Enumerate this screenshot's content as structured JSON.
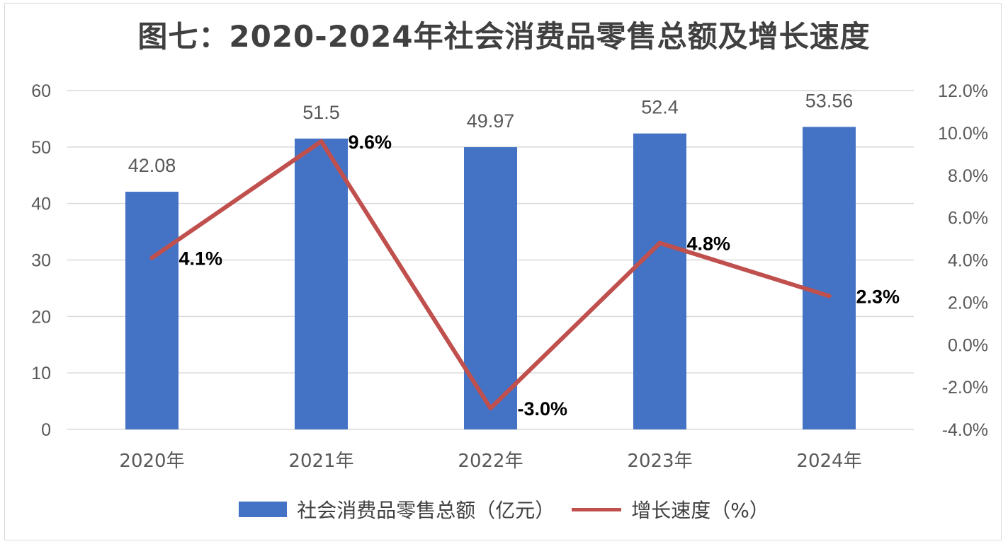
{
  "chart_data": {
    "type": "bar+line",
    "title": "图七：2020-2024年社会消费品零售总额及增长速度",
    "categories": [
      "2020年",
      "2021年",
      "2022年",
      "2023年",
      "2024年"
    ],
    "series": [
      {
        "name": "社会消费品零售总额（亿元）",
        "type": "bar",
        "axis": "left",
        "values": [
          42.08,
          51.5,
          49.97,
          52.4,
          53.56
        ],
        "labels": [
          "42.08",
          "51.5",
          "49.97",
          "52.4",
          "53.56"
        ]
      },
      {
        "name": "增长速度（%）",
        "type": "line",
        "axis": "right",
        "values": [
          4.1,
          9.6,
          -3.0,
          4.8,
          2.3
        ],
        "labels": [
          "4.1%",
          "9.6%",
          "-3.0%",
          "4.8%",
          "2.3%"
        ]
      }
    ],
    "left_axis": {
      "ylim": [
        0,
        60
      ],
      "ticks": [
        0,
        10,
        20,
        30,
        40,
        50,
        60
      ],
      "tick_labels": [
        "0",
        "10",
        "20",
        "30",
        "40",
        "50",
        "60"
      ]
    },
    "right_axis": {
      "ylim": [
        -4.0,
        12.0
      ],
      "ticks": [
        -4,
        -2,
        0,
        2,
        4,
        6,
        8,
        10,
        12
      ],
      "tick_labels": [
        "-4.0%",
        "-2.0%",
        "0.0%",
        "2.0%",
        "4.0%",
        "6.0%",
        "8.0%",
        "10.0%",
        "12.0%"
      ]
    },
    "grid": true,
    "legend_position": "bottom",
    "colors": {
      "bar": "#4472c4",
      "line": "#c0504d",
      "grid": "#d9d9d9",
      "text": "#595959"
    }
  }
}
